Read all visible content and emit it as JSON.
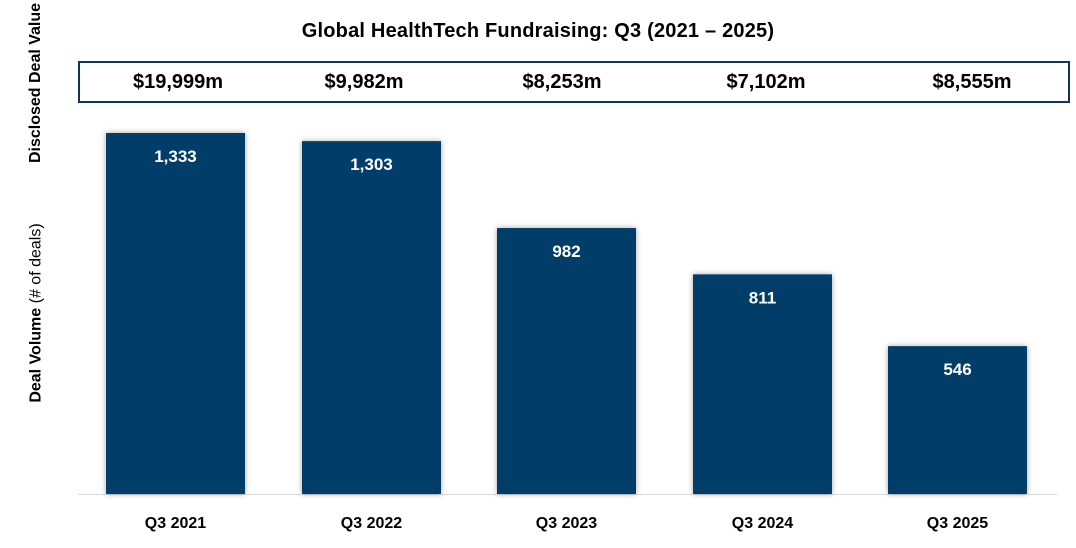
{
  "chart_data": {
    "type": "bar",
    "title": "Global HealthTech Fundraising:  Q3 (2021 – 2025)",
    "categories": [
      "Q3 2021",
      "Q3 2022",
      "Q3 2023",
      "Q3 2024",
      "Q3 2025"
    ],
    "values": [
      1333,
      1303,
      982,
      811,
      546
    ],
    "value_labels": [
      "1,333",
      "1,303",
      "982",
      "811",
      "546"
    ],
    "ylabel_bold": "Deal Volume",
    "ylabel_rest": " (# of deals)",
    "ylim": [
      0,
      1333
    ],
    "grid": false,
    "legend": "none",
    "bar_color": "#003d68",
    "disclosed_value_label": "Disclosed Deal Value",
    "disclosed_values": [
      "$19,999m",
      "$9,982m",
      "$8,253m",
      "$7,102m",
      "$8,555m"
    ]
  }
}
